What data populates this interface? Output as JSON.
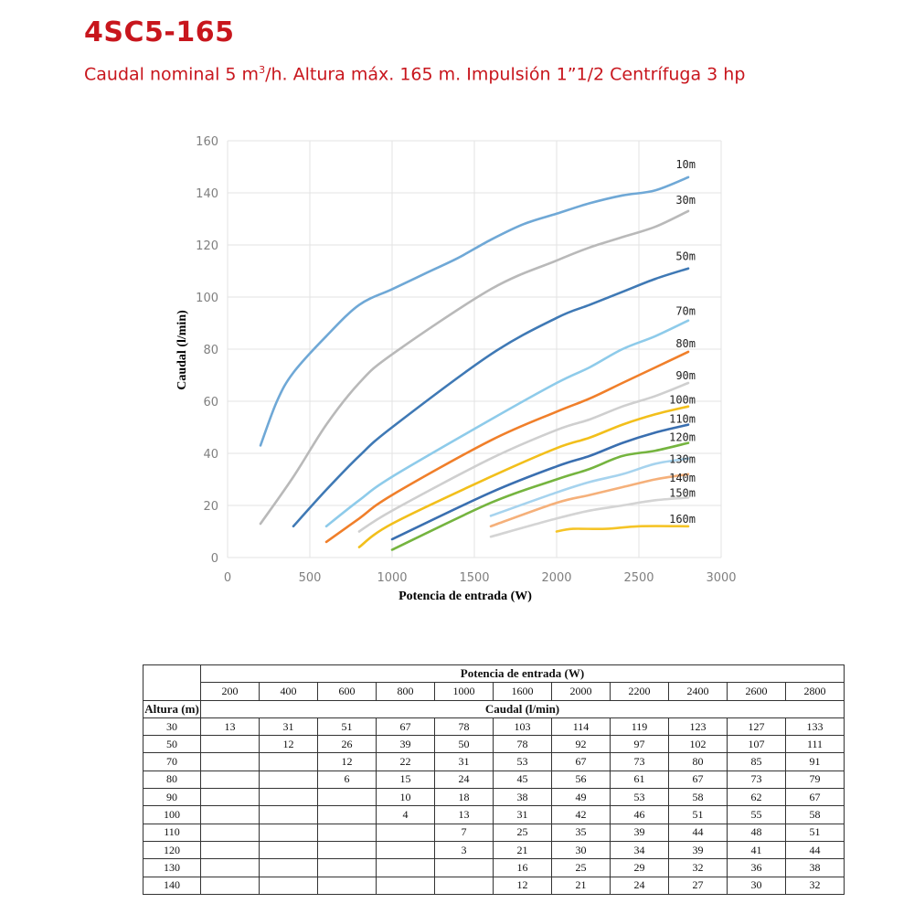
{
  "header": {
    "title": "4SC5-165",
    "subtitle_pre": "Caudal  nominal 5 m",
    "subtitle_sup": "3",
    "subtitle_post": "/h.  Altura máx. 165 m. Impulsión 1”1/2 Centrífuga 3 hp"
  },
  "colors": {
    "title": "#c8161d",
    "grid": "#e3e3e3"
  },
  "chart_data": {
    "type": "line",
    "title": "",
    "xlabel": "Potencia de entrada (W)",
    "ylabel": "Caudal (l/min)",
    "xlim": [
      0,
      3000
    ],
    "ylim": [
      0,
      160
    ],
    "xticks": [
      0,
      500,
      1000,
      1500,
      2000,
      2500,
      3000
    ],
    "yticks": [
      0,
      20,
      40,
      60,
      80,
      100,
      120,
      140,
      160
    ],
    "grid": true,
    "series": [
      {
        "name": "10m",
        "color": "#6fa8d6",
        "points": [
          [
            200,
            43
          ],
          [
            300,
            60
          ],
          [
            400,
            71
          ],
          [
            600,
            85
          ],
          [
            800,
            97
          ],
          [
            1000,
            103
          ],
          [
            1200,
            109
          ],
          [
            1400,
            115
          ],
          [
            1600,
            122
          ],
          [
            1800,
            128
          ],
          [
            2000,
            132
          ],
          [
            2200,
            136
          ],
          [
            2400,
            139
          ],
          [
            2600,
            141
          ],
          [
            2800,
            146
          ]
        ]
      },
      {
        "name": "30m",
        "color": "#b9b9b9",
        "points": [
          [
            200,
            13
          ],
          [
            400,
            31
          ],
          [
            600,
            51
          ],
          [
            800,
            67
          ],
          [
            1000,
            78
          ],
          [
            1600,
            103
          ],
          [
            2000,
            114
          ],
          [
            2200,
            119
          ],
          [
            2400,
            123
          ],
          [
            2600,
            127
          ],
          [
            2800,
            133
          ]
        ]
      },
      {
        "name": "50m",
        "color": "#3f79b5",
        "points": [
          [
            400,
            12
          ],
          [
            600,
            26
          ],
          [
            800,
            39
          ],
          [
            1000,
            50
          ],
          [
            1600,
            78
          ],
          [
            2000,
            92
          ],
          [
            2200,
            97
          ],
          [
            2400,
            102
          ],
          [
            2600,
            107
          ],
          [
            2800,
            111
          ]
        ]
      },
      {
        "name": "70m",
        "color": "#8ecbea",
        "points": [
          [
            600,
            12
          ],
          [
            800,
            22
          ],
          [
            1000,
            31
          ],
          [
            1600,
            53
          ],
          [
            2000,
            67
          ],
          [
            2200,
            73
          ],
          [
            2400,
            80
          ],
          [
            2600,
            85
          ],
          [
            2800,
            91
          ]
        ]
      },
      {
        "name": "80m",
        "color": "#f07f2a",
        "points": [
          [
            600,
            6
          ],
          [
            800,
            15
          ],
          [
            1000,
            24
          ],
          [
            1600,
            45
          ],
          [
            2000,
            56
          ],
          [
            2200,
            61
          ],
          [
            2400,
            67
          ],
          [
            2600,
            73
          ],
          [
            2800,
            79
          ]
        ]
      },
      {
        "name": "90m",
        "color": "#cfcfcf",
        "points": [
          [
            800,
            10
          ],
          [
            1000,
            18
          ],
          [
            1600,
            38
          ],
          [
            2000,
            49
          ],
          [
            2200,
            53
          ],
          [
            2400,
            58
          ],
          [
            2600,
            62
          ],
          [
            2800,
            67
          ]
        ]
      },
      {
        "name": "100m",
        "color": "#f2bf1b",
        "points": [
          [
            800,
            4
          ],
          [
            1000,
            13
          ],
          [
            1600,
            31
          ],
          [
            2000,
            42
          ],
          [
            2200,
            46
          ],
          [
            2400,
            51
          ],
          [
            2600,
            55
          ],
          [
            2800,
            58
          ]
        ]
      },
      {
        "name": "110m",
        "color": "#3a6fb0",
        "points": [
          [
            1000,
            7
          ],
          [
            1600,
            25
          ],
          [
            2000,
            35
          ],
          [
            2200,
            39
          ],
          [
            2400,
            44
          ],
          [
            2600,
            48
          ],
          [
            2800,
            51
          ]
        ]
      },
      {
        "name": "120m",
        "color": "#75b43f",
        "points": [
          [
            1000,
            3
          ],
          [
            1600,
            21
          ],
          [
            2000,
            30
          ],
          [
            2200,
            34
          ],
          [
            2400,
            39
          ],
          [
            2600,
            41
          ],
          [
            2800,
            44
          ]
        ]
      },
      {
        "name": "130m",
        "color": "#a6d3ee",
        "points": [
          [
            1600,
            16
          ],
          [
            2000,
            25
          ],
          [
            2200,
            29
          ],
          [
            2400,
            32
          ],
          [
            2600,
            36
          ],
          [
            2800,
            38
          ]
        ]
      },
      {
        "name": "140m",
        "color": "#f5b07a",
        "points": [
          [
            1600,
            12
          ],
          [
            2000,
            21
          ],
          [
            2200,
            24
          ],
          [
            2400,
            27
          ],
          [
            2600,
            30
          ],
          [
            2800,
            32
          ]
        ]
      },
      {
        "name": "150m",
        "color": "#d4d4d4",
        "points": [
          [
            1600,
            8
          ],
          [
            2000,
            15
          ],
          [
            2200,
            18
          ],
          [
            2400,
            20
          ],
          [
            2600,
            22
          ],
          [
            2800,
            23
          ]
        ]
      },
      {
        "name": "160m",
        "color": "#f5c427",
        "points": [
          [
            2000,
            10
          ],
          [
            2100,
            11
          ],
          [
            2300,
            11
          ],
          [
            2500,
            12
          ],
          [
            2800,
            12
          ]
        ]
      }
    ]
  },
  "table": {
    "top_header": "Potencia de entrada (W)",
    "row_header_label": "Altura (m)",
    "sub_header": "Caudal (l/min)",
    "powers": [
      "200",
      "400",
      "600",
      "800",
      "1000",
      "1600",
      "2000",
      "2200",
      "2400",
      "2600",
      "2800"
    ],
    "rows": [
      {
        "altura": "30",
        "values": [
          "13",
          "31",
          "51",
          "67",
          "78",
          "103",
          "114",
          "119",
          "123",
          "127",
          "133"
        ]
      },
      {
        "altura": "50",
        "values": [
          "",
          "12",
          "26",
          "39",
          "50",
          "78",
          "92",
          "97",
          "102",
          "107",
          "111"
        ]
      },
      {
        "altura": "70",
        "values": [
          "",
          "",
          "12",
          "22",
          "31",
          "53",
          "67",
          "73",
          "80",
          "85",
          "91"
        ]
      },
      {
        "altura": "80",
        "values": [
          "",
          "",
          "6",
          "15",
          "24",
          "45",
          "56",
          "61",
          "67",
          "73",
          "79"
        ]
      },
      {
        "altura": "90",
        "values": [
          "",
          "",
          "",
          "10",
          "18",
          "38",
          "49",
          "53",
          "58",
          "62",
          "67"
        ]
      },
      {
        "altura": "100",
        "values": [
          "",
          "",
          "",
          "4",
          "13",
          "31",
          "42",
          "46",
          "51",
          "55",
          "58"
        ]
      },
      {
        "altura": "110",
        "values": [
          "",
          "",
          "",
          "",
          "7",
          "25",
          "35",
          "39",
          "44",
          "48",
          "51"
        ]
      },
      {
        "altura": "120",
        "values": [
          "",
          "",
          "",
          "",
          "3",
          "21",
          "30",
          "34",
          "39",
          "41",
          "44"
        ]
      },
      {
        "altura": "130",
        "values": [
          "",
          "",
          "",
          "",
          "",
          "16",
          "25",
          "29",
          "32",
          "36",
          "38"
        ]
      },
      {
        "altura": "140",
        "values": [
          "",
          "",
          "",
          "",
          "",
          "12",
          "21",
          "24",
          "27",
          "30",
          "32"
        ]
      }
    ]
  }
}
